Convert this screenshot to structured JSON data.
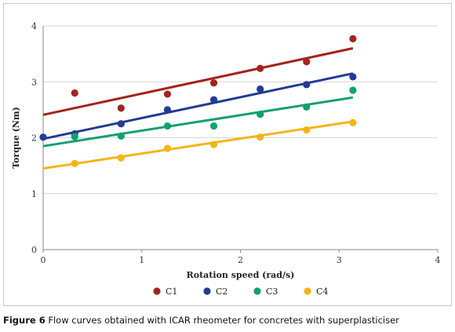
{
  "chart_data": {
    "type": "scatter",
    "xlabel": "Rotation speed (rad/s)",
    "ylabel": "Torque (Nm)",
    "xlim": [
      0,
      4
    ],
    "ylim": [
      0,
      4
    ],
    "xticks": [
      "0",
      "1",
      "2",
      "3",
      "4"
    ],
    "yticks": [
      "0",
      "1",
      "2",
      "3",
      "4"
    ],
    "grid": "horizontal",
    "legend": "bottom",
    "x": [
      0,
      0.32,
      0.79,
      1.26,
      1.73,
      2.2,
      2.67,
      3.14
    ],
    "series": [
      {
        "name": "C1",
        "color": "#a3241c",
        "values": [
          null,
          2.8,
          2.53,
          2.78,
          2.98,
          3.24,
          3.36,
          3.77
        ],
        "fit": [
          2.41,
          3.6
        ]
      },
      {
        "name": "C2",
        "color": "#233b94",
        "values": [
          2.01,
          2.07,
          2.25,
          2.5,
          2.68,
          2.87,
          2.95,
          3.09
        ],
        "fit": [
          1.98,
          3.15
        ]
      },
      {
        "name": "C3",
        "color": "#13a06f",
        "values": [
          null,
          2.02,
          2.03,
          2.21,
          2.21,
          2.42,
          2.55,
          2.85
        ],
        "fit": [
          1.85,
          2.72
        ]
      },
      {
        "name": "C4",
        "color": "#f4b41a",
        "values": [
          null,
          1.54,
          1.64,
          1.81,
          1.88,
          2.01,
          2.14,
          2.27
        ],
        "fit": [
          1.45,
          2.29
        ]
      }
    ]
  },
  "caption": {
    "label": "Figure 6",
    "text": " Flow curves obtained with ICAR rheometer for concretes with superplasticiser"
  }
}
